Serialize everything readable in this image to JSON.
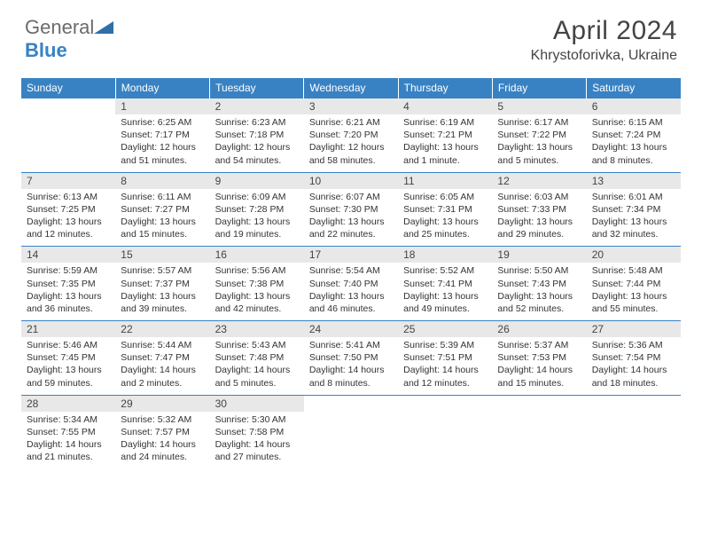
{
  "brand": {
    "part1": "General",
    "part2": "Blue",
    "logo_fill": "#2f6fa8"
  },
  "title": "April 2024",
  "location": "Khrystoforivka, Ukraine",
  "colors": {
    "header_bg": "#3882c4",
    "daynum_bg": "#e8e8e8",
    "rule": "#3882c4",
    "text": "#333333"
  },
  "weekdays": [
    "Sunday",
    "Monday",
    "Tuesday",
    "Wednesday",
    "Thursday",
    "Friday",
    "Saturday"
  ],
  "weeks": [
    [
      {
        "n": "",
        "sr": "",
        "ss": "",
        "dl": ""
      },
      {
        "n": "1",
        "sr": "Sunrise: 6:25 AM",
        "ss": "Sunset: 7:17 PM",
        "dl": "Daylight: 12 hours and 51 minutes."
      },
      {
        "n": "2",
        "sr": "Sunrise: 6:23 AM",
        "ss": "Sunset: 7:18 PM",
        "dl": "Daylight: 12 hours and 54 minutes."
      },
      {
        "n": "3",
        "sr": "Sunrise: 6:21 AM",
        "ss": "Sunset: 7:20 PM",
        "dl": "Daylight: 12 hours and 58 minutes."
      },
      {
        "n": "4",
        "sr": "Sunrise: 6:19 AM",
        "ss": "Sunset: 7:21 PM",
        "dl": "Daylight: 13 hours and 1 minute."
      },
      {
        "n": "5",
        "sr": "Sunrise: 6:17 AM",
        "ss": "Sunset: 7:22 PM",
        "dl": "Daylight: 13 hours and 5 minutes."
      },
      {
        "n": "6",
        "sr": "Sunrise: 6:15 AM",
        "ss": "Sunset: 7:24 PM",
        "dl": "Daylight: 13 hours and 8 minutes."
      }
    ],
    [
      {
        "n": "7",
        "sr": "Sunrise: 6:13 AM",
        "ss": "Sunset: 7:25 PM",
        "dl": "Daylight: 13 hours and 12 minutes."
      },
      {
        "n": "8",
        "sr": "Sunrise: 6:11 AM",
        "ss": "Sunset: 7:27 PM",
        "dl": "Daylight: 13 hours and 15 minutes."
      },
      {
        "n": "9",
        "sr": "Sunrise: 6:09 AM",
        "ss": "Sunset: 7:28 PM",
        "dl": "Daylight: 13 hours and 19 minutes."
      },
      {
        "n": "10",
        "sr": "Sunrise: 6:07 AM",
        "ss": "Sunset: 7:30 PM",
        "dl": "Daylight: 13 hours and 22 minutes."
      },
      {
        "n": "11",
        "sr": "Sunrise: 6:05 AM",
        "ss": "Sunset: 7:31 PM",
        "dl": "Daylight: 13 hours and 25 minutes."
      },
      {
        "n": "12",
        "sr": "Sunrise: 6:03 AM",
        "ss": "Sunset: 7:33 PM",
        "dl": "Daylight: 13 hours and 29 minutes."
      },
      {
        "n": "13",
        "sr": "Sunrise: 6:01 AM",
        "ss": "Sunset: 7:34 PM",
        "dl": "Daylight: 13 hours and 32 minutes."
      }
    ],
    [
      {
        "n": "14",
        "sr": "Sunrise: 5:59 AM",
        "ss": "Sunset: 7:35 PM",
        "dl": "Daylight: 13 hours and 36 minutes."
      },
      {
        "n": "15",
        "sr": "Sunrise: 5:57 AM",
        "ss": "Sunset: 7:37 PM",
        "dl": "Daylight: 13 hours and 39 minutes."
      },
      {
        "n": "16",
        "sr": "Sunrise: 5:56 AM",
        "ss": "Sunset: 7:38 PM",
        "dl": "Daylight: 13 hours and 42 minutes."
      },
      {
        "n": "17",
        "sr": "Sunrise: 5:54 AM",
        "ss": "Sunset: 7:40 PM",
        "dl": "Daylight: 13 hours and 46 minutes."
      },
      {
        "n": "18",
        "sr": "Sunrise: 5:52 AM",
        "ss": "Sunset: 7:41 PM",
        "dl": "Daylight: 13 hours and 49 minutes."
      },
      {
        "n": "19",
        "sr": "Sunrise: 5:50 AM",
        "ss": "Sunset: 7:43 PM",
        "dl": "Daylight: 13 hours and 52 minutes."
      },
      {
        "n": "20",
        "sr": "Sunrise: 5:48 AM",
        "ss": "Sunset: 7:44 PM",
        "dl": "Daylight: 13 hours and 55 minutes."
      }
    ],
    [
      {
        "n": "21",
        "sr": "Sunrise: 5:46 AM",
        "ss": "Sunset: 7:45 PM",
        "dl": "Daylight: 13 hours and 59 minutes."
      },
      {
        "n": "22",
        "sr": "Sunrise: 5:44 AM",
        "ss": "Sunset: 7:47 PM",
        "dl": "Daylight: 14 hours and 2 minutes."
      },
      {
        "n": "23",
        "sr": "Sunrise: 5:43 AM",
        "ss": "Sunset: 7:48 PM",
        "dl": "Daylight: 14 hours and 5 minutes."
      },
      {
        "n": "24",
        "sr": "Sunrise: 5:41 AM",
        "ss": "Sunset: 7:50 PM",
        "dl": "Daylight: 14 hours and 8 minutes."
      },
      {
        "n": "25",
        "sr": "Sunrise: 5:39 AM",
        "ss": "Sunset: 7:51 PM",
        "dl": "Daylight: 14 hours and 12 minutes."
      },
      {
        "n": "26",
        "sr": "Sunrise: 5:37 AM",
        "ss": "Sunset: 7:53 PM",
        "dl": "Daylight: 14 hours and 15 minutes."
      },
      {
        "n": "27",
        "sr": "Sunrise: 5:36 AM",
        "ss": "Sunset: 7:54 PM",
        "dl": "Daylight: 14 hours and 18 minutes."
      }
    ],
    [
      {
        "n": "28",
        "sr": "Sunrise: 5:34 AM",
        "ss": "Sunset: 7:55 PM",
        "dl": "Daylight: 14 hours and 21 minutes."
      },
      {
        "n": "29",
        "sr": "Sunrise: 5:32 AM",
        "ss": "Sunset: 7:57 PM",
        "dl": "Daylight: 14 hours and 24 minutes."
      },
      {
        "n": "30",
        "sr": "Sunrise: 5:30 AM",
        "ss": "Sunset: 7:58 PM",
        "dl": "Daylight: 14 hours and 27 minutes."
      },
      {
        "n": "",
        "sr": "",
        "ss": "",
        "dl": ""
      },
      {
        "n": "",
        "sr": "",
        "ss": "",
        "dl": ""
      },
      {
        "n": "",
        "sr": "",
        "ss": "",
        "dl": ""
      },
      {
        "n": "",
        "sr": "",
        "ss": "",
        "dl": ""
      }
    ]
  ]
}
